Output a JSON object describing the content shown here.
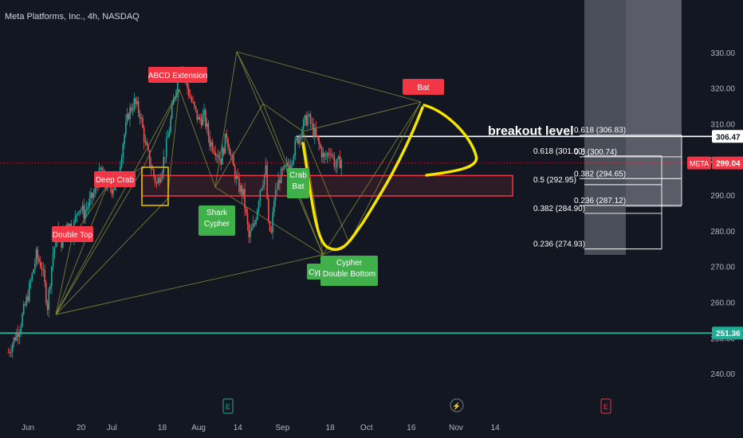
{
  "header": {
    "title": "Meta Platforms, Inc., 4h, NASDAQ"
  },
  "colors": {
    "background": "#131722",
    "up": "#26a69a",
    "down": "#ef5350",
    "pattern_line": "#8b8f3a",
    "annotation_red": "#f23645",
    "annotation_green": "#3fb04a",
    "highlight_yellow": "#f5e400",
    "price_badge": "#f23645",
    "support_line": "#22ab94"
  },
  "chart_data": {
    "type": "candlestick",
    "title": "Meta Platforms, Inc., 4h, NASDAQ",
    "ylim": [
      232,
      338
    ],
    "yticks": [
      "330.00",
      "320.00",
      "310.00",
      "300.00",
      "290.00",
      "280.00",
      "270.00",
      "260.00",
      "250.00",
      "240.00"
    ],
    "xticks": [
      "Jun",
      "20",
      "Jul",
      "18",
      "Aug",
      "14",
      "Sep",
      "18",
      "Oct",
      "16",
      "Nov",
      "14"
    ],
    "x_tick_days": [
      0,
      19,
      30,
      48,
      61,
      75,
      91,
      108,
      121,
      137,
      153,
      167
    ],
    "grid": false,
    "price_path": [
      [
        -7,
        246
      ],
      [
        -3,
        253
      ],
      [
        0,
        262
      ],
      [
        3,
        273
      ],
      [
        5,
        270
      ],
      [
        7,
        259
      ],
      [
        9,
        274
      ],
      [
        11,
        280
      ],
      [
        12,
        277
      ],
      [
        14,
        283
      ],
      [
        16,
        280
      ],
      [
        18,
        287
      ],
      [
        20,
        285
      ],
      [
        22,
        288
      ],
      [
        24,
        291
      ],
      [
        26,
        297
      ],
      [
        28,
        293
      ],
      [
        30,
        292
      ],
      [
        32,
        294
      ],
      [
        34,
        305
      ],
      [
        36,
        313
      ],
      [
        38,
        316
      ],
      [
        40,
        313
      ],
      [
        42,
        304
      ],
      [
        44,
        298
      ],
      [
        46,
        293
      ],
      [
        48,
        298
      ],
      [
        50,
        306
      ],
      [
        53,
        321
      ],
      [
        55,
        327
      ],
      [
        57,
        320
      ],
      [
        59,
        315
      ],
      [
        61,
        311
      ],
      [
        63,
        312
      ],
      [
        65,
        305
      ],
      [
        67,
        303
      ],
      [
        69,
        300
      ],
      [
        71,
        307
      ],
      [
        73,
        299
      ],
      [
        75,
        293
      ],
      [
        77,
        290
      ],
      [
        79,
        278
      ],
      [
        81,
        282
      ],
      [
        83,
        292
      ],
      [
        85,
        297
      ],
      [
        86,
        281
      ],
      [
        87,
        279
      ],
      [
        88,
        289
      ],
      [
        90,
        295
      ],
      [
        92,
        297
      ],
      [
        94,
        300
      ],
      [
        96,
        305
      ],
      [
        98,
        309
      ],
      [
        100,
        312
      ],
      [
        102,
        308
      ],
      [
        104,
        304
      ],
      [
        106,
        300
      ],
      [
        108,
        303
      ],
      [
        110,
        298
      ],
      [
        112,
        300
      ]
    ],
    "current_price": "299.04",
    "symbol": "META",
    "horizontal_levels": [
      {
        "price": 306.47,
        "label": "306.47",
        "note": "breakout level"
      },
      {
        "price": 251.36,
        "label": "251.36"
      }
    ],
    "fib_levels_right": [
      {
        "price": 306.83,
        "label": "0.618 (306.83)"
      },
      {
        "price": 300.74,
        "label": "0.5 (300.74)"
      },
      {
        "price": 294.65,
        "label": "0.382 (294.65)"
      },
      {
        "price": 287.12,
        "label": "0.236 (287.12)"
      }
    ],
    "fib_levels_left": [
      {
        "price": 301.0,
        "label": "0.618 (301.00)"
      },
      {
        "price": 292.95,
        "label": "0.5 (292.95)"
      },
      {
        "price": 284.9,
        "label": "0.382 (284.90)"
      },
      {
        "price": 274.93,
        "label": "0.236 (274.93)"
      }
    ],
    "pattern_annotations": [
      {
        "label": "Double Top",
        "kind": "red"
      },
      {
        "label": "Deep Crab",
        "kind": "red"
      },
      {
        "label": "ABCD Extension",
        "kind": "red"
      },
      {
        "label": "Bat",
        "kind": "red"
      },
      {
        "label": "Shark\nCypher",
        "kind": "green"
      },
      {
        "label": "Crab\nBat",
        "kind": "green"
      },
      {
        "label": "Cyp",
        "kind": "green"
      },
      {
        "label": "Cypher\nDouble Bottom",
        "kind": "green"
      }
    ],
    "event_markers": [
      "E",
      "E"
    ]
  }
}
